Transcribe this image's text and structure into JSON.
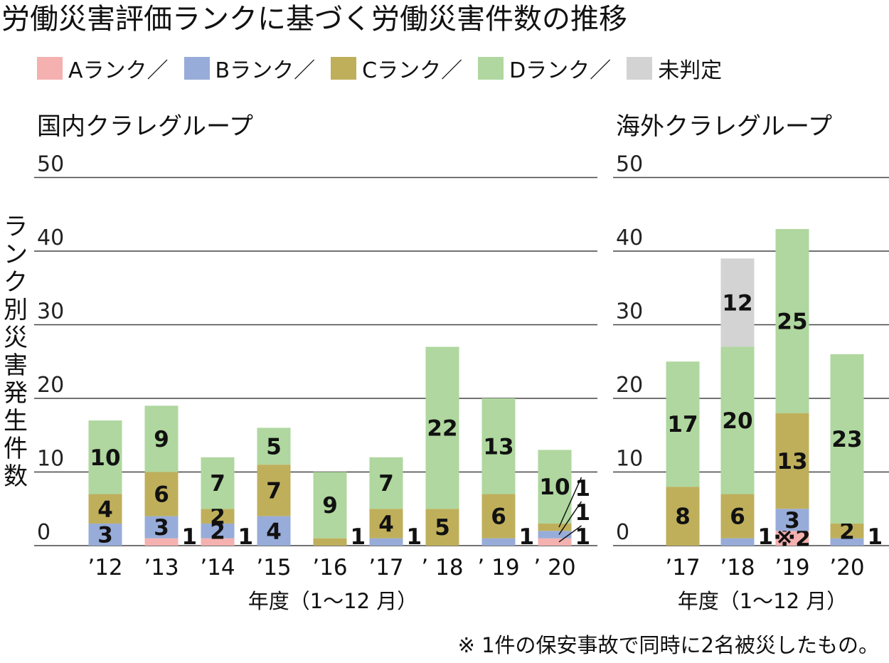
{
  "title": "労働災害評価ランクに基づく労働災害件数の推移",
  "legend": [
    {
      "label": "Aランク／",
      "color": "#f4b1b0"
    },
    {
      "label": "Bランク／",
      "color": "#97acd9"
    },
    {
      "label": "Cランク／",
      "color": "#bfaf5b"
    },
    {
      "label": "Dランク／",
      "color": "#afd79f"
    },
    {
      "label": "未判定",
      "color": "#d3d3d3"
    }
  ],
  "ylabel": "ランク別災害発生件数",
  "note": "※ 1件の保安事故で同時に2名被災したもの。",
  "chart_data": [
    {
      "type": "bar",
      "title": "国内クラレグループ",
      "xlabel": "年度（1～12 月）",
      "ylim": [
        0,
        50
      ],
      "yticks": [
        "0",
        "10",
        "20",
        "30",
        "40",
        "50"
      ],
      "categories": [
        "’12",
        "’13",
        "’14",
        "’15",
        "’16",
        "’17",
        "’ 18",
        "’ 19",
        "’ 20"
      ],
      "series": [
        {
          "name": "Aランク",
          "values": [
            0,
            1,
            1,
            0,
            0,
            0,
            0,
            0,
            1
          ]
        },
        {
          "name": "Bランク",
          "values": [
            3,
            3,
            2,
            4,
            0,
            1,
            0,
            1,
            1
          ]
        },
        {
          "name": "Cランク",
          "values": [
            4,
            6,
            2,
            7,
            1,
            4,
            5,
            6,
            1
          ]
        },
        {
          "name": "Dランク",
          "values": [
            10,
            9,
            7,
            5,
            9,
            7,
            22,
            13,
            10
          ]
        },
        {
          "name": "未判定",
          "values": [
            0,
            0,
            0,
            0,
            0,
            0,
            0,
            0,
            0
          ]
        }
      ],
      "bar_labels": [
        [
          "",
          "3",
          "4",
          "10",
          ""
        ],
        [
          "1",
          "3",
          "6",
          "9",
          ""
        ],
        [
          "1",
          "2",
          "2",
          "7",
          ""
        ],
        [
          "",
          "4",
          "7",
          "5",
          ""
        ],
        [
          "",
          "",
          "1",
          "9",
          ""
        ],
        [
          "",
          "1",
          "4",
          "7",
          ""
        ],
        [
          "",
          "",
          "5",
          "22",
          ""
        ],
        [
          "",
          "1",
          "6",
          "13",
          ""
        ],
        [
          "1",
          "1",
          "1",
          "10",
          ""
        ]
      ],
      "grid": true
    },
    {
      "type": "bar",
      "title": "海外クラレグループ",
      "xlabel": "年度（1～12 月）",
      "ylim": [
        0,
        50
      ],
      "yticks": [
        "0",
        "10",
        "20",
        "30",
        "40",
        "50"
      ],
      "categories": [
        "’17",
        "’18",
        "’19",
        "’20"
      ],
      "series": [
        {
          "name": "Aランク",
          "values": [
            0,
            0,
            2,
            0
          ]
        },
        {
          "name": "Bランク",
          "values": [
            0,
            1,
            3,
            1
          ]
        },
        {
          "name": "Cランク",
          "values": [
            8,
            6,
            13,
            2
          ]
        },
        {
          "name": "Dランク",
          "values": [
            17,
            20,
            25,
            23
          ]
        },
        {
          "name": "未判定",
          "values": [
            0,
            12,
            0,
            0
          ]
        }
      ],
      "bar_labels": [
        [
          "",
          "",
          "8",
          "17",
          ""
        ],
        [
          "",
          "1",
          "6",
          "20",
          "12"
        ],
        [
          "※2",
          "3",
          "13",
          "25",
          ""
        ],
        [
          "",
          "1",
          "2",
          "23",
          ""
        ]
      ],
      "grid": true
    }
  ]
}
